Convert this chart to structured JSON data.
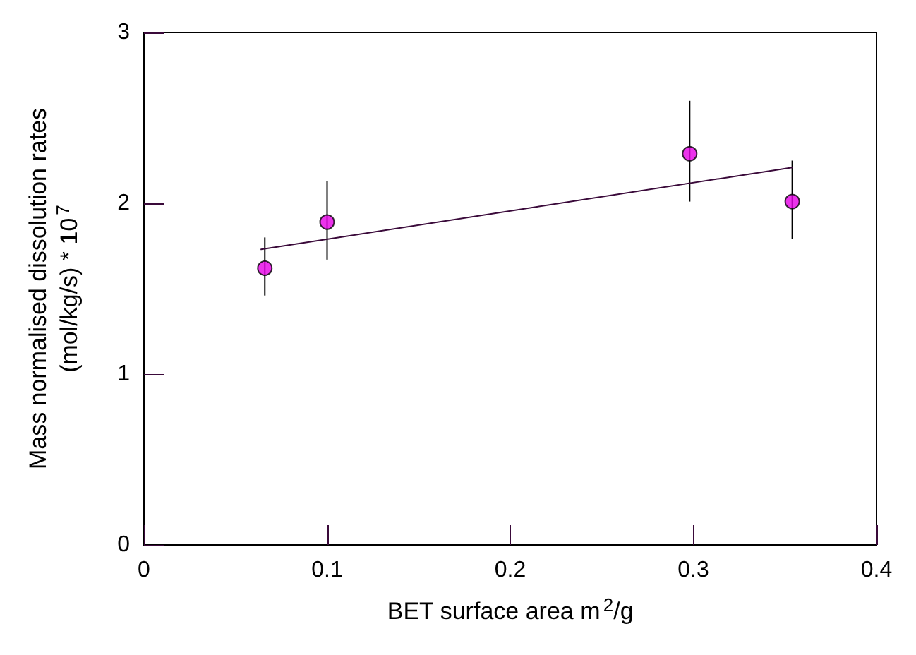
{
  "chart_data": {
    "type": "scatter",
    "xlabel": "BET surface area m$^{2}$/g",
    "ylabel": "Mass normalised dissolution rates\n(mol/kg/s) * 10$^{7}$",
    "xlim": [
      0,
      0.4
    ],
    "xticks": [
      0,
      0.1,
      0.2,
      0.3,
      0.4
    ],
    "ylim": [
      0,
      3
    ],
    "yticks": [
      0,
      1,
      2,
      3
    ],
    "grid": false,
    "marker": "circle",
    "series": [
      {
        "color": "#e600e6",
        "x": [
          0.066,
          0.1,
          0.298,
          0.354
        ],
        "values": [
          1.62,
          1.89,
          2.29,
          2.01
        ],
        "errors": [
          [
            1.46,
            1.8
          ],
          [
            1.67,
            2.13
          ],
          [
            2.01,
            2.6
          ],
          [
            1.79,
            2.25
          ]
        ]
      },
      {
        "type": "line",
        "color": "#3a0a3a",
        "x": [
          0.064,
          0.354
        ],
        "values": [
          1.73,
          2.21
        ],
        "marker": "none",
        "line_style": "solid"
      }
    ]
  }
}
